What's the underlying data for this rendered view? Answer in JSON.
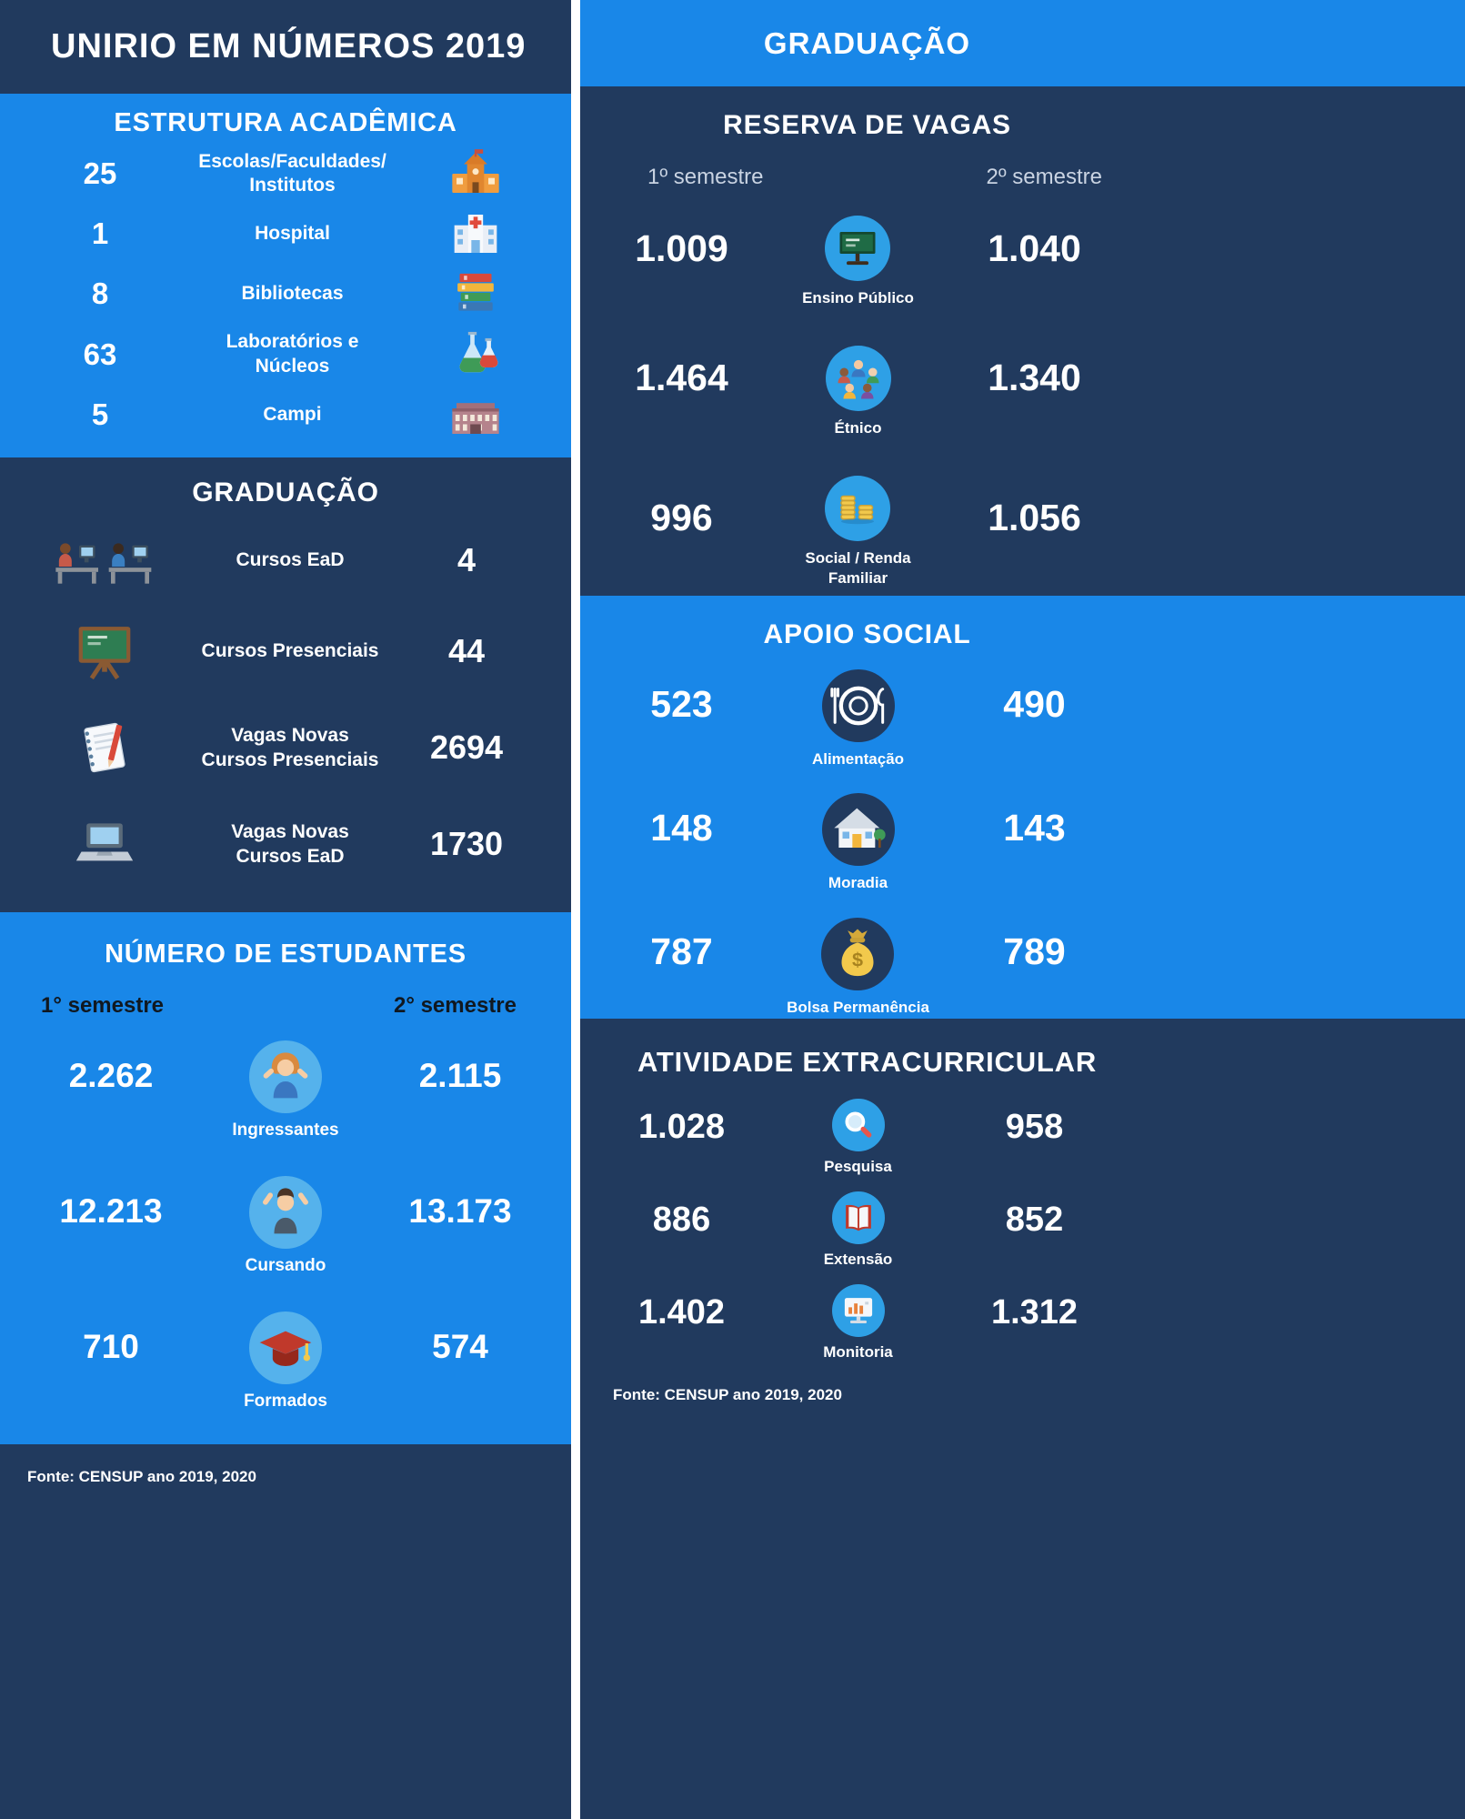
{
  "colors": {
    "navy": "#213a5e",
    "blue": "#1987e8",
    "icon_circle_blue": "#2ea0e6",
    "icon_circle_light": "#55b2ec"
  },
  "header": {
    "title": "UNIRIO EM NÚMEROS 2019"
  },
  "estrutura": {
    "title": "ESTRUTURA ACADÊMICA",
    "items": [
      {
        "value": "25",
        "lines": [
          "Escolas/Faculdades/",
          "Institutos"
        ],
        "icon": "school"
      },
      {
        "value": "1",
        "lines": [
          "Hospital"
        ],
        "icon": "hospital"
      },
      {
        "value": "8",
        "lines": [
          "Bibliotecas"
        ],
        "icon": "books"
      },
      {
        "value": "63",
        "lines": [
          "Laboratórios e",
          "Núcleos"
        ],
        "icon": "lab"
      },
      {
        "value": "5",
        "lines": [
          "Campi"
        ],
        "icon": "campus"
      }
    ]
  },
  "graduacao": {
    "title": "GRADUAÇÃO",
    "items": [
      {
        "lines": [
          "Cursos EaD"
        ],
        "value": "4",
        "icon": "elearning"
      },
      {
        "lines": [
          "Cursos Presenciais"
        ],
        "value": "44",
        "icon": "chalkboard"
      },
      {
        "lines": [
          "Vagas Novas",
          "Cursos Presenciais"
        ],
        "value": "2694",
        "icon": "notebook"
      },
      {
        "lines": [
          "Vagas Novas",
          "Cursos EaD"
        ],
        "value": "1730",
        "icon": "laptop"
      }
    ]
  },
  "estudantes": {
    "title": "NÚMERO DE ESTUDANTES",
    "sem1": "1° semestre",
    "sem2": "2° semestre",
    "rows": [
      {
        "v1": "2.262",
        "label": "Ingressantes",
        "v2": "2.115",
        "icon": "student-girl"
      },
      {
        "v1": "12.213",
        "label": "Cursando",
        "v2": "13.173",
        "icon": "student-boy"
      },
      {
        "v1": "710",
        "label": "Formados",
        "v2": "574",
        "icon": "grad-cap"
      }
    ]
  },
  "fonte_left": "Fonte: CENSUP ano 2019, 2020",
  "grad_header": {
    "title": "GRADUAÇÃO"
  },
  "reserva": {
    "title": "RESERVA DE VAGAS",
    "sem1": "1º semestre",
    "sem2": "2º semestre",
    "rows": [
      {
        "v1": "1.009",
        "lines": [
          "Ensino Público"
        ],
        "v2": "1.040",
        "icon": "public-school"
      },
      {
        "v1": "1.464",
        "lines": [
          "Étnico"
        ],
        "v2": "1.340",
        "icon": "ethnic"
      },
      {
        "v1": "996",
        "lines": [
          "Social / Renda",
          "Familiar"
        ],
        "v2": "1.056",
        "icon": "coins"
      }
    ]
  },
  "apoio": {
    "title": "APOIO SOCIAL",
    "rows": [
      {
        "v1": "523",
        "label": "Alimentação",
        "v2": "490",
        "icon": "meal"
      },
      {
        "v1": "148",
        "label": "Moradia",
        "v2": "143",
        "icon": "house"
      },
      {
        "v1": "787",
        "label": "Bolsa Permanência",
        "v2": "789",
        "icon": "money-bag"
      }
    ]
  },
  "atividade": {
    "title": "ATIVIDADE EXTRACURRICULAR",
    "rows": [
      {
        "v1": "1.028",
        "label": "Pesquisa",
        "v2": "958",
        "icon": "magnifier"
      },
      {
        "v1": "886",
        "label": "Extensão",
        "v2": "852",
        "icon": "open-book"
      },
      {
        "v1": "1.402",
        "label": "Monitoria",
        "v2": "1.312",
        "icon": "monitor"
      }
    ]
  },
  "fonte_right": "Fonte: CENSUP ano 2019, 2020",
  "chart_data": [
    {
      "type": "table",
      "title": "Estrutura Acadêmica",
      "categories": [
        "Escolas/Faculdades/Institutos",
        "Hospital",
        "Bibliotecas",
        "Laboratórios e Núcleos",
        "Campi"
      ],
      "values": [
        25,
        1,
        8,
        63,
        5
      ]
    },
    {
      "type": "table",
      "title": "Graduação",
      "categories": [
        "Cursos EaD",
        "Cursos Presenciais",
        "Vagas Novas Cursos Presenciais",
        "Vagas Novas Cursos EaD"
      ],
      "values": [
        4,
        44,
        2694,
        1730
      ]
    },
    {
      "type": "table",
      "title": "Número de Estudantes",
      "categories": [
        "Ingressantes",
        "Cursando",
        "Formados"
      ],
      "series": [
        {
          "name": "1° semestre",
          "values": [
            2262,
            12213,
            710
          ]
        },
        {
          "name": "2° semestre",
          "values": [
            2115,
            13173,
            574
          ]
        }
      ]
    },
    {
      "type": "table",
      "title": "Reserva de Vagas",
      "categories": [
        "Ensino Público",
        "Étnico",
        "Social / Renda Familiar"
      ],
      "series": [
        {
          "name": "1º semestre",
          "values": [
            1009,
            1464,
            996
          ]
        },
        {
          "name": "2º semestre",
          "values": [
            1040,
            1340,
            1056
          ]
        }
      ]
    },
    {
      "type": "table",
      "title": "Apoio Social",
      "categories": [
        "Alimentação",
        "Moradia",
        "Bolsa Permanência"
      ],
      "series": [
        {
          "name": "1º semestre",
          "values": [
            523,
            148,
            787
          ]
        },
        {
          "name": "2º semestre",
          "values": [
            490,
            143,
            789
          ]
        }
      ]
    },
    {
      "type": "table",
      "title": "Atividade Extracurricular",
      "categories": [
        "Pesquisa",
        "Extensão",
        "Monitoria"
      ],
      "series": [
        {
          "name": "1º semestre",
          "values": [
            1028,
            886,
            1402
          ]
        },
        {
          "name": "2º semestre",
          "values": [
            958,
            852,
            1312
          ]
        }
      ]
    }
  ]
}
